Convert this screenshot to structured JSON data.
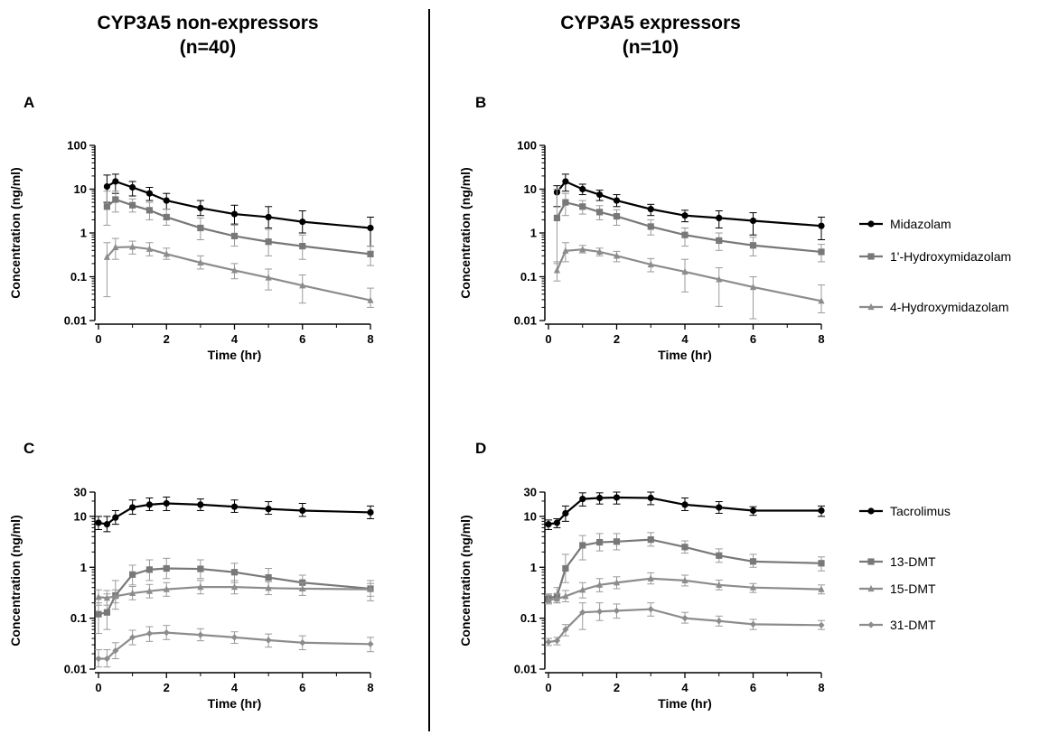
{
  "column_titles": {
    "left": {
      "line1": "CYP3A5 non-expressors",
      "line2": "(n=40)"
    },
    "right": {
      "line1": "CYP3A5 expressors",
      "line2": "(n=10)"
    }
  },
  "chart_data": [
    {
      "type": "line",
      "panel": "A",
      "xlabel": "Time (hr)",
      "ylabel": "Concentration (ng/ml)",
      "xlim": [
        0,
        8
      ],
      "xticks": [
        0,
        2,
        4,
        6,
        8
      ],
      "yscale": "log",
      "ylim": [
        0.01,
        100
      ],
      "yticks": [
        0.01,
        0.1,
        1,
        10,
        100
      ],
      "ytick_labels": [
        "0.01",
        "0.1",
        "1",
        "10",
        "100"
      ],
      "x": [
        0.25,
        0.5,
        1,
        1.5,
        2,
        3,
        4,
        5,
        6,
        8
      ],
      "series": [
        {
          "name": "Midazolam",
          "color": "#000000",
          "marker": "circle",
          "values": [
            11.5,
            15,
            11,
            8,
            5.5,
            3.7,
            2.7,
            2.3,
            1.8,
            1.3
          ],
          "err_hi": [
            21,
            22,
            15,
            11,
            8,
            5.5,
            4.3,
            4,
            3.2,
            2.3
          ],
          "err_lo": [
            5,
            8,
            7,
            5.5,
            3.5,
            2.5,
            1.6,
            1.3,
            1,
            0.5
          ]
        },
        {
          "name": "1'-Hydroxymidazolam",
          "color": "#787878",
          "marker": "square",
          "values": [
            4,
            5.8,
            4.3,
            3.3,
            2.3,
            1.3,
            0.85,
            0.63,
            0.5,
            0.33
          ],
          "err_hi": [
            9,
            9,
            6,
            5,
            3.5,
            2.2,
            1.5,
            1.2,
            0.9,
            0.5
          ],
          "err_lo": [
            1.5,
            3,
            3,
            2,
            1.5,
            0.7,
            0.5,
            0.3,
            0.25,
            0.18
          ]
        },
        {
          "name": "4-Hydroxymidazolam",
          "color": "#8c8c8c",
          "marker": "triangle",
          "values": [
            0.28,
            0.47,
            0.48,
            0.43,
            0.33,
            0.21,
            0.14,
            0.095,
            0.063,
            0.029
          ],
          "err_hi": [
            0.6,
            0.75,
            0.65,
            0.6,
            0.45,
            0.3,
            0.2,
            0.15,
            0.11,
            0.055
          ],
          "err_lo": [
            0.035,
            0.25,
            0.33,
            0.3,
            0.25,
            0.15,
            0.09,
            0.05,
            0.025,
            0.02
          ]
        }
      ]
    },
    {
      "type": "line",
      "panel": "B",
      "xlabel": "Time (hr)",
      "ylabel": "Concentration (ng/ml)",
      "xlim": [
        0,
        8
      ],
      "xticks": [
        0,
        2,
        4,
        6,
        8
      ],
      "yscale": "log",
      "ylim": [
        0.01,
        100
      ],
      "yticks": [
        0.01,
        0.1,
        1,
        10,
        100
      ],
      "ytick_labels": [
        "0.01",
        "0.1",
        "1",
        "10",
        "100"
      ],
      "legend": "right",
      "x": [
        0.25,
        0.5,
        1,
        1.5,
        2,
        3,
        4,
        5,
        6,
        8
      ],
      "series": [
        {
          "name": "Midazolam",
          "color": "#000000",
          "marker": "circle",
          "values": [
            8.5,
            15,
            10,
            7.5,
            5.5,
            3.5,
            2.5,
            2.2,
            1.9,
            1.45
          ],
          "err_hi": [
            12,
            22,
            13,
            9.5,
            7.5,
            4.5,
            3.3,
            3.2,
            2.9,
            2.3
          ],
          "err_lo": [
            4,
            9,
            7.5,
            5.5,
            4,
            2.5,
            1.8,
            1.3,
            0.9,
            0.7
          ]
        },
        {
          "name": "1'-Hydroxymidazolam",
          "color": "#787878",
          "marker": "square",
          "values": [
            2.2,
            5,
            4,
            3,
            2.4,
            1.4,
            0.9,
            0.67,
            0.52,
            0.37
          ],
          "err_hi": [
            10,
            8,
            5.5,
            4.2,
            3.4,
            2,
            1.3,
            1,
            0.8,
            0.55
          ],
          "err_lo": [
            0.2,
            2.5,
            2.7,
            2,
            1.5,
            0.9,
            0.5,
            0.4,
            0.3,
            0.22
          ]
        },
        {
          "name": "4-Hydroxymidazolam",
          "color": "#8c8c8c",
          "marker": "triangle",
          "values": [
            0.14,
            0.39,
            0.42,
            0.37,
            0.3,
            0.19,
            0.13,
            0.087,
            0.058,
            0.028
          ],
          "err_hi": [
            0.22,
            0.6,
            0.52,
            0.45,
            0.38,
            0.26,
            0.25,
            0.16,
            0.1,
            0.065
          ],
          "err_lo": [
            0.08,
            0.22,
            0.35,
            0.3,
            0.22,
            0.13,
            0.045,
            0.021,
            0.011,
            0.015
          ]
        }
      ]
    },
    {
      "type": "line",
      "panel": "C",
      "xlabel": "Time (hr)",
      "ylabel": "Concentration (ng/ml)",
      "xlim": [
        0,
        8
      ],
      "xticks": [
        0,
        2,
        4,
        6,
        8
      ],
      "yscale": "log",
      "ylim": [
        0.01,
        30
      ],
      "yticks": [
        0.01,
        0.1,
        1,
        10,
        30
      ],
      "ytick_labels": [
        "0.01",
        "0.1",
        "1",
        "10",
        "30"
      ],
      "x": [
        0,
        0.25,
        0.5,
        1,
        1.5,
        2,
        3,
        4,
        5,
        6,
        8
      ],
      "series": [
        {
          "name": "Tacrolimus",
          "color": "#000000",
          "marker": "circle",
          "values": [
            7.5,
            7,
            9.5,
            15,
            17,
            18,
            17,
            15.5,
            14,
            13,
            12
          ],
          "err_hi": [
            10,
            10,
            13,
            21,
            23,
            24,
            22,
            21,
            19.5,
            18,
            16
          ],
          "err_lo": [
            5.5,
            5,
            7,
            11,
            13,
            13,
            13,
            12,
            11,
            10,
            9
          ]
        },
        {
          "name": "13-DMT",
          "color": "#787878",
          "marker": "square",
          "values": [
            0.12,
            0.13,
            0.28,
            0.72,
            0.9,
            0.95,
            0.93,
            0.8,
            0.63,
            0.5,
            0.38
          ],
          "err_hi": [
            0.2,
            0.3,
            0.55,
            1.1,
            1.4,
            1.5,
            1.4,
            1.2,
            0.95,
            0.7,
            0.55
          ],
          "err_lo": [
            0.05,
            0.06,
            0.15,
            0.45,
            0.55,
            0.6,
            0.6,
            0.5,
            0.4,
            0.35,
            0.22
          ]
        },
        {
          "name": "15-DMT",
          "color": "#8c8c8c",
          "marker": "triangle",
          "values": [
            0.26,
            0.25,
            0.27,
            0.31,
            0.34,
            0.37,
            0.41,
            0.41,
            0.39,
            0.38,
            0.37
          ],
          "err_hi": [
            0.36,
            0.35,
            0.36,
            0.42,
            0.46,
            0.5,
            0.55,
            0.55,
            0.52,
            0.5,
            0.48
          ],
          "err_lo": [
            0.18,
            0.18,
            0.2,
            0.23,
            0.25,
            0.27,
            0.3,
            0.3,
            0.29,
            0.28,
            0.27
          ]
        },
        {
          "name": "31-DMT",
          "color": "#8c8c8c",
          "marker": "diamond",
          "values": [
            0.016,
            0.016,
            0.023,
            0.042,
            0.05,
            0.052,
            0.047,
            0.042,
            0.037,
            0.033,
            0.031
          ],
          "err_hi": [
            0.024,
            0.024,
            0.033,
            0.058,
            0.068,
            0.072,
            0.062,
            0.054,
            0.049,
            0.045,
            0.042
          ],
          "err_lo": [
            0.011,
            0.011,
            0.016,
            0.03,
            0.035,
            0.038,
            0.036,
            0.032,
            0.027,
            0.024,
            0.022
          ]
        }
      ]
    },
    {
      "type": "line",
      "panel": "D",
      "xlabel": "Time (hr)",
      "ylabel": "Concentration (ng/ml)",
      "xlim": [
        0,
        8
      ],
      "xticks": [
        0,
        2,
        4,
        6,
        8
      ],
      "yscale": "log",
      "ylim": [
        0.01,
        30
      ],
      "yticks": [
        0.01,
        0.1,
        1,
        10,
        30
      ],
      "ytick_labels": [
        "0.01",
        "0.1",
        "1",
        "10",
        "30"
      ],
      "legend": "right",
      "x": [
        0,
        0.25,
        0.5,
        1,
        1.5,
        2,
        3,
        4,
        5,
        6,
        8
      ],
      "series": [
        {
          "name": "Tacrolimus",
          "color": "#000000",
          "marker": "circle",
          "values": [
            7,
            7.5,
            11.5,
            22,
            23,
            23.5,
            23,
            17,
            15,
            13,
            13
          ],
          "err_hi": [
            8.5,
            9,
            16,
            29,
            29,
            30,
            30,
            23,
            19.5,
            15.5,
            16
          ],
          "err_lo": [
            5.5,
            6,
            8,
            16,
            17.5,
            17.5,
            17,
            13,
            11.5,
            10.5,
            10
          ]
        },
        {
          "name": "13-DMT",
          "color": "#787878",
          "marker": "square",
          "values": [
            0.25,
            0.27,
            0.95,
            2.7,
            3.1,
            3.2,
            3.5,
            2.5,
            1.7,
            1.3,
            1.2
          ],
          "err_hi": [
            0.3,
            0.4,
            1.8,
            4.2,
            4.6,
            4.6,
            4.8,
            3.3,
            2.3,
            1.8,
            1.6
          ],
          "err_lo": [
            0.2,
            0.2,
            0.5,
            1.4,
            2.1,
            2.2,
            2.6,
            1.9,
            1.25,
            1,
            0.85
          ]
        },
        {
          "name": "15-DMT",
          "color": "#8c8c8c",
          "marker": "triangle",
          "values": [
            0.23,
            0.24,
            0.27,
            0.36,
            0.45,
            0.5,
            0.6,
            0.55,
            0.45,
            0.4,
            0.37
          ],
          "err_hi": [
            0.28,
            0.3,
            0.35,
            0.5,
            0.6,
            0.65,
            0.78,
            0.7,
            0.56,
            0.48,
            0.45
          ],
          "err_lo": [
            0.19,
            0.2,
            0.21,
            0.25,
            0.33,
            0.38,
            0.47,
            0.43,
            0.36,
            0.32,
            0.3
          ]
        },
        {
          "name": "31-DMT",
          "color": "#8c8c8c",
          "marker": "diamond",
          "values": [
            0.034,
            0.036,
            0.06,
            0.13,
            0.135,
            0.14,
            0.15,
            0.1,
            0.088,
            0.076,
            0.073
          ],
          "err_hi": [
            0.04,
            0.042,
            0.075,
            0.2,
            0.2,
            0.19,
            0.2,
            0.13,
            0.11,
            0.095,
            0.09
          ],
          "err_lo": [
            0.029,
            0.03,
            0.045,
            0.06,
            0.09,
            0.1,
            0.11,
            0.08,
            0.07,
            0.06,
            0.06
          ]
        }
      ]
    }
  ]
}
